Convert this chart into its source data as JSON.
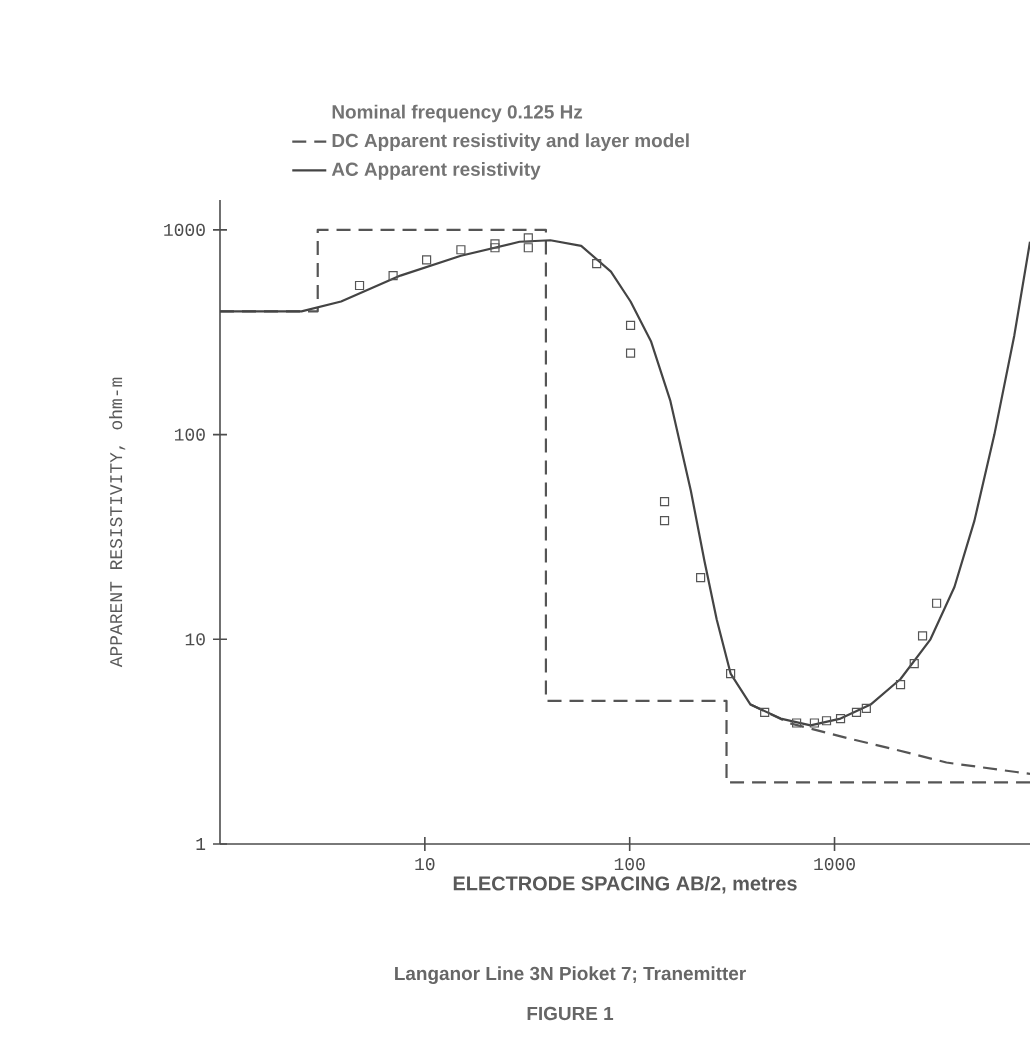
{
  "chart_data": {
    "type": "line",
    "legend_title": "Nominal frequency 0.125 Hz",
    "xlabel": "ELECTRODE SPACING AB/2, metres",
    "ylabel": "APPARENT RESISTIVITY, ohm-m",
    "annotations": [
      "Langanor Line 3N Pioket 7; Tranemitter",
      "FIGURE 1"
    ],
    "log": "xy",
    "xlim": [
      1,
      9000
    ],
    "ylim": [
      1,
      1400
    ],
    "xticks": [
      10,
      100,
      1000
    ],
    "yticks": [
      1,
      10,
      100,
      1000
    ],
    "legend": "top",
    "series": [
      {
        "name": "DC Apparent resistivity and layer model",
        "line_style": "dashed",
        "color": "#555555",
        "x": [
          1,
          3.0,
          3.0,
          39,
          39,
          297,
          297,
          9000
        ],
        "values": [
          400,
          400,
          1000,
          1000,
          5.0,
          5.0,
          2.0,
          2.0
        ]
      },
      {
        "line_style": "dashed",
        "color": "#555555",
        "x": [
          389,
          600,
          1145,
          1960,
          3520,
          9000
        ],
        "values": [
          4.8,
          3.9,
          3.3,
          2.9,
          2.5,
          2.2
        ]
      },
      {
        "name": "AC Apparent resistivity",
        "line_style": "solid",
        "color": "#444444",
        "x": [
          1,
          2.5,
          3.9,
          7.6,
          15,
          29,
          41,
          58,
          81,
          101,
          127,
          158,
          199,
          232,
          266,
          311,
          389,
          546,
          764,
          1070,
          1500,
          2100,
          2940,
          3850,
          4820,
          6030,
          7550,
          9000
        ],
        "values": [
          400,
          400,
          447,
          598,
          748,
          875,
          890,
          836,
          625,
          447,
          286,
          146,
          53,
          24,
          12.5,
          6.8,
          4.8,
          4.1,
          3.8,
          4.1,
          4.8,
          6.4,
          10,
          18,
          38,
          100,
          306,
          875
        ]
      },
      {
        "type": "scatter",
        "marker": "square",
        "color": "#555555",
        "x": [
          4.8,
          7.0,
          10.2,
          15,
          22,
          22,
          32,
          32,
          69,
          101,
          101,
          148,
          148,
          222,
          311,
          456,
          653,
          798,
          914,
          1070,
          1280,
          1430,
          2100,
          2450,
          2690,
          3150
        ],
        "values": [
          535,
          598,
          714,
          800,
          855,
          818,
          915,
          818,
          684,
          342,
          250,
          47,
          38,
          20,
          6.8,
          4.4,
          3.9,
          3.9,
          4.0,
          4.1,
          4.4,
          4.6,
          6.0,
          7.6,
          10.4,
          15
        ]
      }
    ]
  }
}
